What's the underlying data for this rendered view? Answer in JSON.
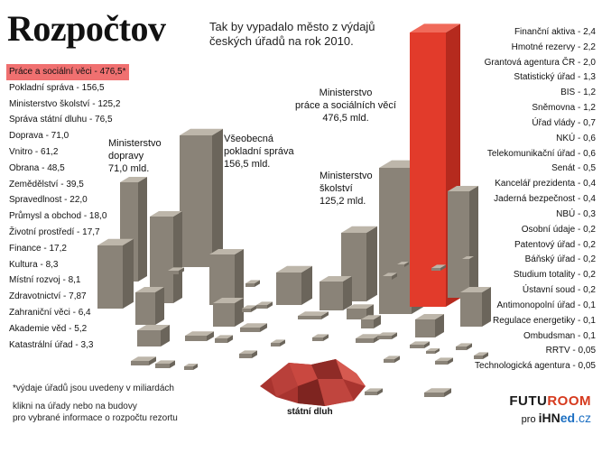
{
  "header": {
    "title": "Rozpočtov",
    "subtitle": "Tak by vypadalo město z výdajů českých úřadů na rok 2010."
  },
  "left_items": [
    {
      "label": "Práce a sociální věci - 476,5*",
      "value": 476.5,
      "highlight": true
    },
    {
      "label": "Pokladní správa - 156,5",
      "value": 156.5
    },
    {
      "label": "Ministerstvo školství - 125,2",
      "value": 125.2
    },
    {
      "label": "Správa státní dluhu - 76,5",
      "value": 76.5
    },
    {
      "label": "Doprava - 71,0",
      "value": 71.0
    },
    {
      "label": "Vnitro - 61,2",
      "value": 61.2
    },
    {
      "label": "Obrana - 48,5",
      "value": 48.5
    },
    {
      "label": "Zemědělství - 39,5",
      "value": 39.5
    },
    {
      "label": "Spravedlnost - 22,0",
      "value": 22.0
    },
    {
      "label": "Průmysl a obchod - 18,0",
      "value": 18.0
    },
    {
      "label": "Životní prostředí - 17,7",
      "value": 17.7
    },
    {
      "label": "Finance - 17,2",
      "value": 17.2
    },
    {
      "label": "Kultura - 8,3",
      "value": 8.3
    },
    {
      "label": "Místní rozvoj - 8,1",
      "value": 8.1
    },
    {
      "label": "Zdravotnictví - 7,87",
      "value": 7.87
    },
    {
      "label": "Zahraniční věci - 6,4",
      "value": 6.4
    },
    {
      "label": "Akademie věd - 5,2",
      "value": 5.2
    },
    {
      "label": "Katastrální úřad - 3,3",
      "value": 3.3
    }
  ],
  "right_items": [
    {
      "label": "Finanční aktiva - 2,4",
      "value": 2.4
    },
    {
      "label": "Hmotné rezervy - 2,2",
      "value": 2.2
    },
    {
      "label": "Grantová agentura ČR - 2,0",
      "value": 2.0
    },
    {
      "label": "Statistický úřad - 1,3",
      "value": 1.3
    },
    {
      "label": "BIS - 1,2",
      "value": 1.2
    },
    {
      "label": "Sněmovna - 1,2",
      "value": 1.2
    },
    {
      "label": "Úřad vlády - 0,7",
      "value": 0.7
    },
    {
      "label": "NKÚ - 0,6",
      "value": 0.6
    },
    {
      "label": "Telekomunikační úřad - 0,6",
      "value": 0.6
    },
    {
      "label": "Senát - 0,5",
      "value": 0.5
    },
    {
      "label": "Kancelář prezidenta - 0,4",
      "value": 0.4
    },
    {
      "label": "Jaderná bezpečnost - 0,4",
      "value": 0.4
    },
    {
      "label": "NBÚ - 0,3",
      "value": 0.3
    },
    {
      "label": "Osobní údaje - 0,2",
      "value": 0.2
    },
    {
      "label": "Patentový úřad - 0,2",
      "value": 0.2
    },
    {
      "label": "Báňský úřad - 0,2",
      "value": 0.2
    },
    {
      "label": "Studium totality - 0,2",
      "value": 0.2
    },
    {
      "label": "Ústavní soud - 0,2",
      "value": 0.2
    },
    {
      "label": "Antimonopolní úřad - 0,1",
      "value": 0.1
    },
    {
      "label": "Regulace energetiky - 0,1",
      "value": 0.1
    },
    {
      "label": "Ombudsman - 0,1",
      "value": 0.1
    },
    {
      "label": "RRTV - 0,05",
      "value": 0.05
    },
    {
      "label": "Technologická agentura - 0,05",
      "value": 0.05
    }
  ],
  "callouts": {
    "doprava_l1": "Ministerstvo",
    "doprava_l2": "dopravy",
    "doprava_l3": "71,0 mld.",
    "pokladni_l1": "Všeobecná",
    "pokladni_l2": "pokladní správa",
    "pokladni_l3": "156,5 mld.",
    "prace_l1": "Ministerstvo",
    "prace_l2": "práce a sociálních věcí",
    "prace_l3": "476,5 mld.",
    "skolstvi_l1": "Ministerstvo",
    "skolstvi_l2": "školství",
    "skolstvi_l3": "125,2 mld."
  },
  "debt_label": "státní dluh",
  "footnotes": {
    "note1": "*výdaje úřadů jsou uvedeny v miliardách",
    "note2": "klikni na úřady nebo na budovy",
    "note3": "pro vybrané informace o rozpočtu  rezortu"
  },
  "logo": {
    "futu": "FUTU",
    "room": "ROOM",
    "pro": "pro",
    "ihn": "iHN",
    "ed": "ed",
    "cz": ".cz"
  },
  "colors": {
    "highlight": "#f07070",
    "building_front": "#8a8378",
    "building_side": "#6b655b",
    "building_top": "#bdb6aa",
    "red_building": "#e03a2a",
    "debt": "#b23a35"
  }
}
